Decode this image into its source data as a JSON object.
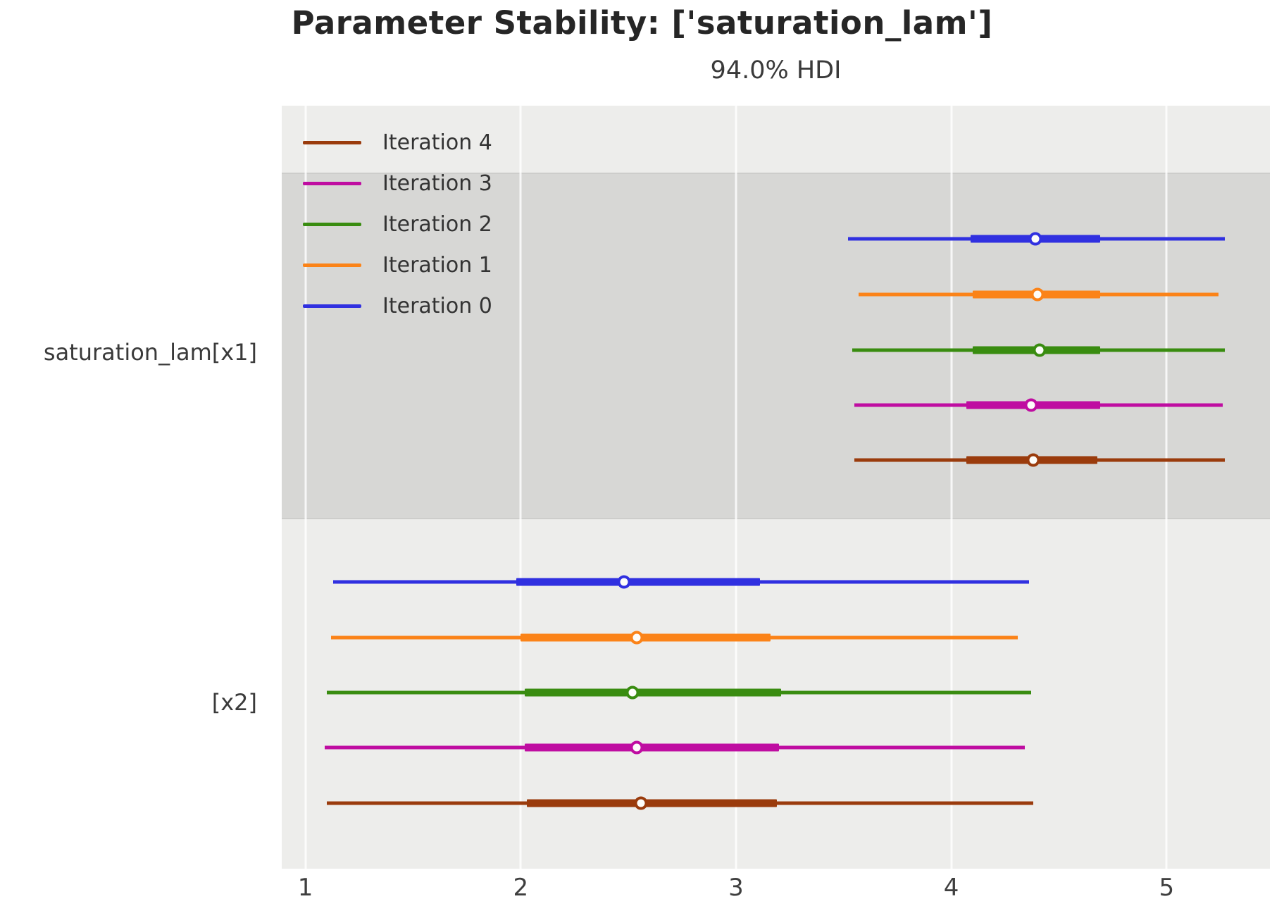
{
  "chart_data": {
    "type": "forest",
    "title": "Parameter Stability: ['saturation_lam']",
    "subtitle": "94.0% HDI",
    "hdi_probability": "94.0%",
    "xlabel": "",
    "xlim": [
      0.89,
      5.48
    ],
    "x_ticks": [
      "1",
      "2",
      "3",
      "4",
      "5"
    ],
    "grid": "vertical-white-lines",
    "legend_position": "upper-left-inside",
    "palette": {
      "axes_background": "#ededeb",
      "shaded_band": "#d7d7d5",
      "gridline": "#ffffff",
      "title_color": "#262626",
      "tick_label_color": "#3f3f3f",
      "marker_face": "#fdfdfa"
    },
    "legend": [
      {
        "label": "Iteration 4",
        "color": "#9a3b0c"
      },
      {
        "label": "Iteration 3",
        "color": "#bf0da1"
      },
      {
        "label": "Iteration 2",
        "color": "#398c10"
      },
      {
        "label": "Iteration 1",
        "color": "#fb8318"
      },
      {
        "label": "Iteration 0",
        "color": "#3030e0"
      }
    ],
    "groups": [
      {
        "label": "saturation_lam[x1]",
        "shaded": true,
        "rows": [
          {
            "series": "Iteration 0",
            "color": "#3030e0",
            "hdi_low": 3.52,
            "q25": 4.09,
            "median": 4.39,
            "q75": 4.69,
            "hdi_high": 5.27
          },
          {
            "series": "Iteration 1",
            "color": "#fb8318",
            "hdi_low": 3.57,
            "q25": 4.1,
            "median": 4.4,
            "q75": 4.69,
            "hdi_high": 5.24
          },
          {
            "series": "Iteration 2",
            "color": "#398c10",
            "hdi_low": 3.54,
            "q25": 4.1,
            "median": 4.41,
            "q75": 4.69,
            "hdi_high": 5.27
          },
          {
            "series": "Iteration 3",
            "color": "#bf0da1",
            "hdi_low": 3.55,
            "q25": 4.07,
            "median": 4.37,
            "q75": 4.69,
            "hdi_high": 5.26
          },
          {
            "series": "Iteration 4",
            "color": "#9a3b0c",
            "hdi_low": 3.55,
            "q25": 4.07,
            "median": 4.38,
            "q75": 4.68,
            "hdi_high": 5.27
          }
        ]
      },
      {
        "label": "[x2]",
        "shaded": false,
        "rows": [
          {
            "series": "Iteration 0",
            "color": "#3030e0",
            "hdi_low": 1.13,
            "q25": 1.98,
            "median": 2.48,
            "q75": 3.11,
            "hdi_high": 4.36
          },
          {
            "series": "Iteration 1",
            "color": "#fb8318",
            "hdi_low": 1.12,
            "q25": 2.0,
            "median": 2.54,
            "q75": 3.16,
            "hdi_high": 4.31
          },
          {
            "series": "Iteration 2",
            "color": "#398c10",
            "hdi_low": 1.1,
            "q25": 2.02,
            "median": 2.52,
            "q75": 3.21,
            "hdi_high": 4.37
          },
          {
            "series": "Iteration 3",
            "color": "#bf0da1",
            "hdi_low": 1.09,
            "q25": 2.02,
            "median": 2.54,
            "q75": 3.2,
            "hdi_high": 4.34
          },
          {
            "series": "Iteration 4",
            "color": "#9a3b0c",
            "hdi_low": 1.1,
            "q25": 2.03,
            "median": 2.56,
            "q75": 3.19,
            "hdi_high": 4.38
          }
        ]
      }
    ]
  }
}
